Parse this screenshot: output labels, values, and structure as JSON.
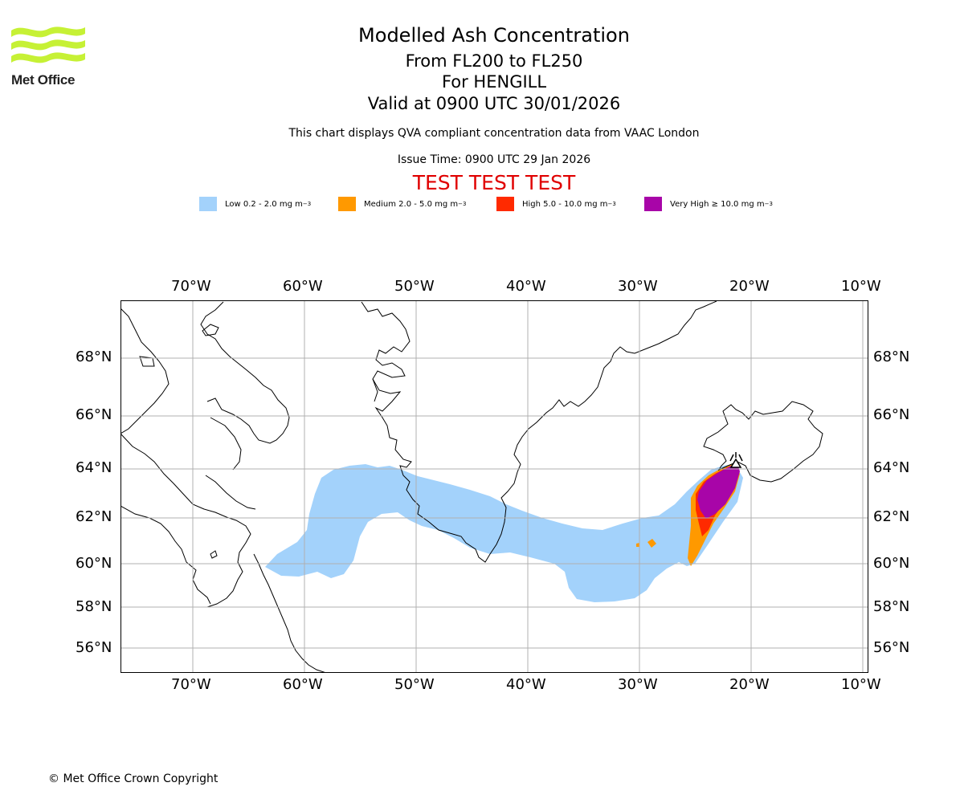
{
  "logo": {
    "text": "Met Office"
  },
  "header": {
    "title": "Modelled Ash Concentration",
    "levels": "From FL200 to FL250",
    "volcano_line": "For HENGILL",
    "valid_time": "Valid at 0900 UTC 30/01/2026",
    "description": "This chart displays QVA compliant concentration data from VAAC London",
    "issue_time": "Issue Time: 0900 UTC 29 Jan 2026",
    "test_banner": "TEST TEST TEST"
  },
  "legend": [
    {
      "label": "Low 0.2 - 2.0 mg m",
      "exp": "−3",
      "color": "#a3d2fb"
    },
    {
      "label": "Medium 2.0 - 5.0 mg m",
      "exp": "−3",
      "color": "#ff9900"
    },
    {
      "label": "High 5.0 - 10.0 mg m",
      "exp": "−3",
      "color": "#ff2a00"
    },
    {
      "label": "Very High  ≥  10.0 mg m",
      "exp": "−3",
      "color": "#a805a8"
    }
  ],
  "map": {
    "lon_labels": [
      "70°W",
      "60°W",
      "50°W",
      "40°W",
      "30°W",
      "20°W",
      "10°W"
    ],
    "lat_labels": [
      "68°N",
      "66°N",
      "64°N",
      "62°N",
      "60°N",
      "58°N",
      "56°N"
    ],
    "volcano": "HENGILL"
  },
  "footer": {
    "copyright": "© Met Office Crown Copyright"
  }
}
